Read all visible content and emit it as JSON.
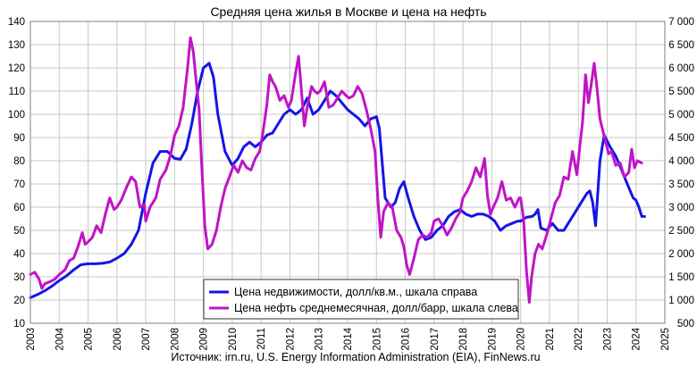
{
  "chart_data": {
    "type": "line",
    "title": "Средняя цена жилья в Москве и цена на нефть",
    "source": "Источник: irn.ru, U.S. Energy Information Administration (EIA), FinNews.ru",
    "grid": true,
    "legend_position": "bottom-center",
    "x_ticks": [
      "2003",
      "2004",
      "2005",
      "2006",
      "2007",
      "2008",
      "2009",
      "2010",
      "2011",
      "2012",
      "2013",
      "2014",
      "2015",
      "2016",
      "2017",
      "2018",
      "2019",
      "2020",
      "2021",
      "2022",
      "2023",
      "2024",
      "2025"
    ],
    "xlim": [
      2003,
      2025
    ],
    "y_left": {
      "lim": [
        10,
        140
      ],
      "ticks": [
        "10",
        "20",
        "30",
        "40",
        "50",
        "60",
        "70",
        "80",
        "90",
        "100",
        "110",
        "120",
        "130",
        "140"
      ]
    },
    "y_right": {
      "lim": [
        500,
        7000
      ],
      "ticks": [
        "500",
        "1 000",
        "1 500",
        "2 000",
        "2 500",
        "3 000",
        "3 500",
        "4 000",
        "4 500",
        "5 000",
        "5 500",
        "6 000",
        "6 500",
        "7 000"
      ]
    },
    "series": [
      {
        "name": "Цена недвижимости, долл/кв.м., шкала справа",
        "axis": "right",
        "color": "#1515e6",
        "points": [
          [
            2003.0,
            1050
          ],
          [
            2003.25,
            1120
          ],
          [
            2003.5,
            1200
          ],
          [
            2003.75,
            1300
          ],
          [
            2004.0,
            1420
          ],
          [
            2004.25,
            1520
          ],
          [
            2004.5,
            1650
          ],
          [
            2004.75,
            1760
          ],
          [
            2005.0,
            1780
          ],
          [
            2005.25,
            1780
          ],
          [
            2005.5,
            1790
          ],
          [
            2005.75,
            1820
          ],
          [
            2006.0,
            1900
          ],
          [
            2006.25,
            2000
          ],
          [
            2006.5,
            2200
          ],
          [
            2006.75,
            2500
          ],
          [
            2007.0,
            3300
          ],
          [
            2007.25,
            3950
          ],
          [
            2007.5,
            4200
          ],
          [
            2007.75,
            4200
          ],
          [
            2008.0,
            4050
          ],
          [
            2008.2,
            4030
          ],
          [
            2008.4,
            4250
          ],
          [
            2008.6,
            4800
          ],
          [
            2008.8,
            5500
          ],
          [
            2009.0,
            6000
          ],
          [
            2009.2,
            6100
          ],
          [
            2009.35,
            5800
          ],
          [
            2009.5,
            5000
          ],
          [
            2009.75,
            4200
          ],
          [
            2010.0,
            3900
          ],
          [
            2010.2,
            4050
          ],
          [
            2010.4,
            4300
          ],
          [
            2010.6,
            4400
          ],
          [
            2010.8,
            4300
          ],
          [
            2011.0,
            4400
          ],
          [
            2011.2,
            4550
          ],
          [
            2011.4,
            4600
          ],
          [
            2011.6,
            4800
          ],
          [
            2011.8,
            5000
          ],
          [
            2012.0,
            5100
          ],
          [
            2012.2,
            5000
          ],
          [
            2012.4,
            5100
          ],
          [
            2012.6,
            5350
          ],
          [
            2012.8,
            5000
          ],
          [
            2013.0,
            5100
          ],
          [
            2013.2,
            5300
          ],
          [
            2013.4,
            5500
          ],
          [
            2013.6,
            5400
          ],
          [
            2013.8,
            5250
          ],
          [
            2014.0,
            5100
          ],
          [
            2014.2,
            5000
          ],
          [
            2014.4,
            4900
          ],
          [
            2014.6,
            4750
          ],
          [
            2014.8,
            4900
          ],
          [
            2015.0,
            4950
          ],
          [
            2015.1,
            4700
          ],
          [
            2015.3,
            3200
          ],
          [
            2015.5,
            3000
          ],
          [
            2015.65,
            3100
          ],
          [
            2015.8,
            3400
          ],
          [
            2015.95,
            3550
          ],
          [
            2016.1,
            3200
          ],
          [
            2016.3,
            2800
          ],
          [
            2016.5,
            2500
          ],
          [
            2016.7,
            2300
          ],
          [
            2016.9,
            2350
          ],
          [
            2017.1,
            2500
          ],
          [
            2017.3,
            2600
          ],
          [
            2017.5,
            2800
          ],
          [
            2017.7,
            2900
          ],
          [
            2017.9,
            2950
          ],
          [
            2018.1,
            2850
          ],
          [
            2018.3,
            2800
          ],
          [
            2018.5,
            2850
          ],
          [
            2018.7,
            2850
          ],
          [
            2018.9,
            2800
          ],
          [
            2019.1,
            2700
          ],
          [
            2019.3,
            2500
          ],
          [
            2019.5,
            2600
          ],
          [
            2019.7,
            2650
          ],
          [
            2019.9,
            2700
          ],
          [
            2020.0,
            2700
          ],
          [
            2020.2,
            2780
          ],
          [
            2020.4,
            2800
          ],
          [
            2020.5,
            2850
          ],
          [
            2020.6,
            2950
          ],
          [
            2020.7,
            2550
          ],
          [
            2020.9,
            2500
          ],
          [
            2021.1,
            2650
          ],
          [
            2021.3,
            2500
          ],
          [
            2021.5,
            2500
          ],
          [
            2021.7,
            2700
          ],
          [
            2021.9,
            2900
          ],
          [
            2022.1,
            3100
          ],
          [
            2022.3,
            3300
          ],
          [
            2022.4,
            3350
          ],
          [
            2022.5,
            3100
          ],
          [
            2022.6,
            2600
          ],
          [
            2022.75,
            4000
          ],
          [
            2022.9,
            4550
          ],
          [
            2023.1,
            4300
          ],
          [
            2023.3,
            4100
          ],
          [
            2023.5,
            3800
          ],
          [
            2023.7,
            3500
          ],
          [
            2023.9,
            3200
          ],
          [
            2024.0,
            3150
          ],
          [
            2024.1,
            3000
          ],
          [
            2024.2,
            2800
          ],
          [
            2024.3,
            2800
          ]
        ]
      },
      {
        "name": "Цена нефть  среднемесячная, долл/барр, шкала слева",
        "axis": "left",
        "color": "#c014c6",
        "points": [
          [
            2003.0,
            31
          ],
          [
            2003.15,
            32
          ],
          [
            2003.3,
            29
          ],
          [
            2003.4,
            25
          ],
          [
            2003.5,
            27
          ],
          [
            2003.7,
            28
          ],
          [
            2003.85,
            29
          ],
          [
            2004.0,
            31
          ],
          [
            2004.2,
            33
          ],
          [
            2004.35,
            37
          ],
          [
            2004.5,
            38
          ],
          [
            2004.65,
            43
          ],
          [
            2004.8,
            49
          ],
          [
            2004.9,
            44
          ],
          [
            2005.0,
            45
          ],
          [
            2005.15,
            47
          ],
          [
            2005.3,
            52
          ],
          [
            2005.45,
            49
          ],
          [
            2005.6,
            57
          ],
          [
            2005.75,
            64
          ],
          [
            2005.9,
            59
          ],
          [
            2006.0,
            60
          ],
          [
            2006.15,
            63
          ],
          [
            2006.35,
            69
          ],
          [
            2006.5,
            73
          ],
          [
            2006.65,
            71
          ],
          [
            2006.8,
            60
          ],
          [
            2006.95,
            61
          ],
          [
            2007.0,
            54
          ],
          [
            2007.15,
            60
          ],
          [
            2007.35,
            64
          ],
          [
            2007.5,
            72
          ],
          [
            2007.7,
            76
          ],
          [
            2007.85,
            82
          ],
          [
            2008.0,
            91
          ],
          [
            2008.15,
            95
          ],
          [
            2008.3,
            103
          ],
          [
            2008.45,
            120
          ],
          [
            2008.55,
            133
          ],
          [
            2008.65,
            127
          ],
          [
            2008.75,
            114
          ],
          [
            2008.85,
            102
          ],
          [
            2008.95,
            76
          ],
          [
            2009.05,
            52
          ],
          [
            2009.15,
            42
          ],
          [
            2009.3,
            44
          ],
          [
            2009.45,
            50
          ],
          [
            2009.6,
            60
          ],
          [
            2009.75,
            68
          ],
          [
            2009.9,
            73
          ],
          [
            2010.05,
            78
          ],
          [
            2010.2,
            75
          ],
          [
            2010.35,
            80
          ],
          [
            2010.5,
            77
          ],
          [
            2010.65,
            76
          ],
          [
            2010.8,
            81
          ],
          [
            2010.95,
            84
          ],
          [
            2011.05,
            91
          ],
          [
            2011.2,
            104
          ],
          [
            2011.3,
            117
          ],
          [
            2011.4,
            114
          ],
          [
            2011.5,
            112
          ],
          [
            2011.65,
            106
          ],
          [
            2011.8,
            108
          ],
          [
            2011.95,
            103
          ],
          [
            2012.05,
            106
          ],
          [
            2012.2,
            118
          ],
          [
            2012.3,
            125
          ],
          [
            2012.4,
            110
          ],
          [
            2012.5,
            95
          ],
          [
            2012.6,
            103
          ],
          [
            2012.75,
            112
          ],
          [
            2012.85,
            110
          ],
          [
            2012.95,
            109
          ],
          [
            2013.05,
            110
          ],
          [
            2013.2,
            114
          ],
          [
            2013.35,
            103
          ],
          [
            2013.5,
            104
          ],
          [
            2013.65,
            107
          ],
          [
            2013.8,
            110
          ],
          [
            2013.95,
            108
          ],
          [
            2014.05,
            107
          ],
          [
            2014.2,
            108
          ],
          [
            2014.35,
            112
          ],
          [
            2014.5,
            109
          ],
          [
            2014.65,
            102
          ],
          [
            2014.8,
            94
          ],
          [
            2014.95,
            84
          ],
          [
            2015.05,
            63
          ],
          [
            2015.15,
            47
          ],
          [
            2015.25,
            58
          ],
          [
            2015.4,
            62
          ],
          [
            2015.55,
            60
          ],
          [
            2015.7,
            50
          ],
          [
            2015.85,
            47
          ],
          [
            2015.95,
            43
          ],
          [
            2016.05,
            35
          ],
          [
            2016.15,
            31
          ],
          [
            2016.3,
            38
          ],
          [
            2016.45,
            46
          ],
          [
            2016.6,
            48
          ],
          [
            2016.75,
            47
          ],
          [
            2016.9,
            49
          ],
          [
            2017.0,
            54
          ],
          [
            2017.15,
            55
          ],
          [
            2017.3,
            52
          ],
          [
            2017.45,
            48
          ],
          [
            2017.6,
            51
          ],
          [
            2017.75,
            55
          ],
          [
            2017.9,
            58
          ],
          [
            2018.0,
            64
          ],
          [
            2018.15,
            67
          ],
          [
            2018.3,
            71
          ],
          [
            2018.45,
            77
          ],
          [
            2018.6,
            73
          ],
          [
            2018.75,
            81
          ],
          [
            2018.85,
            65
          ],
          [
            2018.95,
            57
          ],
          [
            2019.05,
            60
          ],
          [
            2019.2,
            64
          ],
          [
            2019.35,
            71
          ],
          [
            2019.5,
            63
          ],
          [
            2019.65,
            64
          ],
          [
            2019.8,
            60
          ],
          [
            2019.95,
            64
          ],
          [
            2020.0,
            64
          ],
          [
            2020.1,
            55
          ],
          [
            2020.2,
            33
          ],
          [
            2020.3,
            19
          ],
          [
            2020.38,
            30
          ],
          [
            2020.5,
            40
          ],
          [
            2020.62,
            44
          ],
          [
            2020.75,
            42
          ],
          [
            2020.9,
            48
          ],
          [
            2021.05,
            55
          ],
          [
            2021.2,
            62
          ],
          [
            2021.35,
            65
          ],
          [
            2021.5,
            73
          ],
          [
            2021.65,
            72
          ],
          [
            2021.8,
            84
          ],
          [
            2021.95,
            74
          ],
          [
            2022.05,
            86
          ],
          [
            2022.15,
            97
          ],
          [
            2022.25,
            117
          ],
          [
            2022.35,
            105
          ],
          [
            2022.45,
            113
          ],
          [
            2022.55,
            122
          ],
          [
            2022.65,
            111
          ],
          [
            2022.75,
            98
          ],
          [
            2022.85,
            93
          ],
          [
            2022.95,
            88
          ],
          [
            2023.05,
            83
          ],
          [
            2023.15,
            84
          ],
          [
            2023.3,
            78
          ],
          [
            2023.45,
            79
          ],
          [
            2023.6,
            73
          ],
          [
            2023.75,
            75
          ],
          [
            2023.85,
            85
          ],
          [
            2023.95,
            77
          ],
          [
            2024.05,
            80
          ],
          [
            2024.2,
            79
          ]
        ]
      }
    ]
  }
}
